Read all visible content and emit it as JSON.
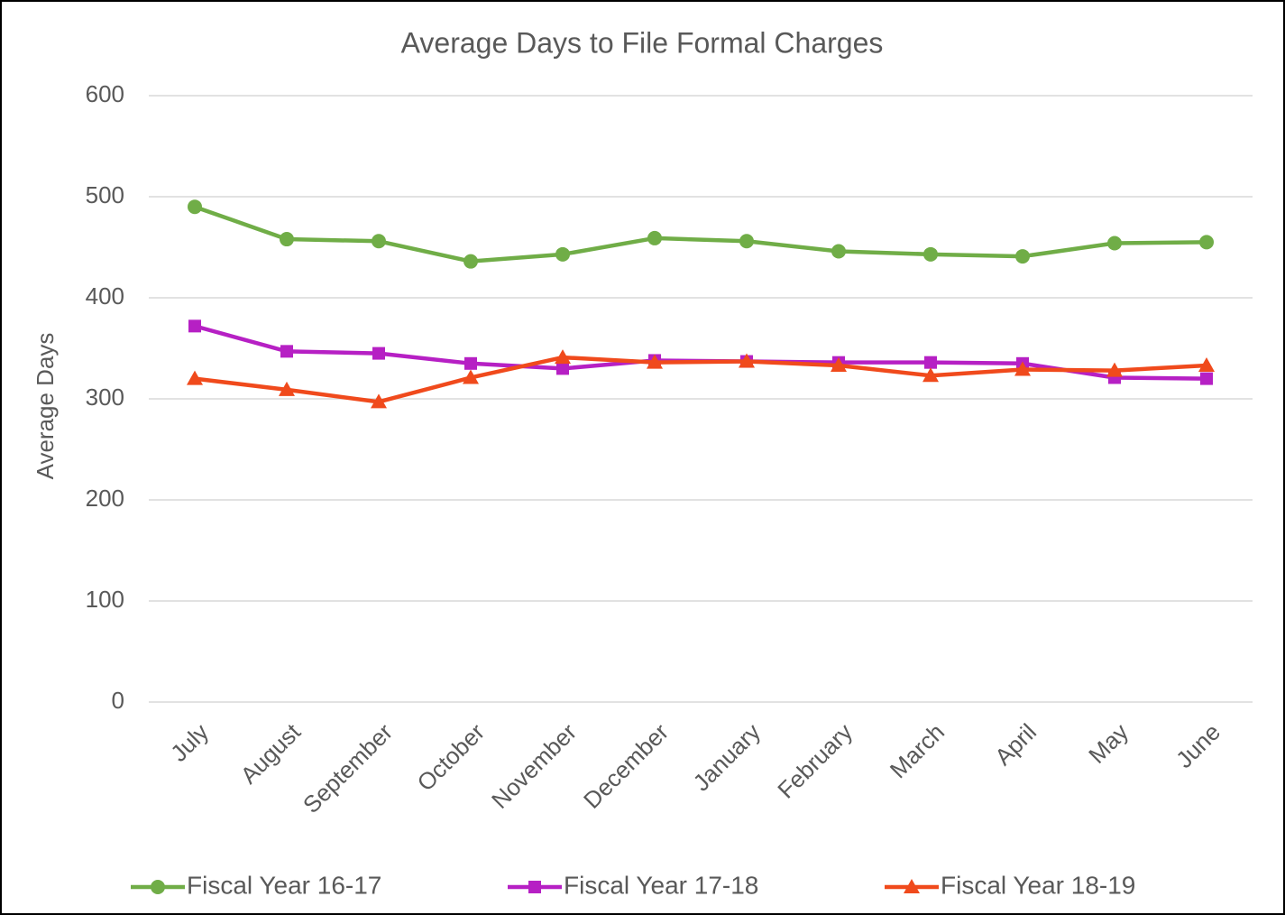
{
  "chart_data": {
    "type": "line",
    "title": "Average Days to File Formal Charges",
    "y_label": "Average Days",
    "categories": [
      "July",
      "August",
      "September",
      "October",
      "November",
      "December",
      "January",
      "February",
      "March",
      "April",
      "May",
      "June"
    ],
    "series": [
      {
        "name": "Fiscal Year 16-17",
        "color": "#70ad47",
        "marker": "circle",
        "values": [
          490,
          458,
          456,
          436,
          443,
          459,
          456,
          446,
          443,
          441,
          454,
          455
        ]
      },
      {
        "name": "Fiscal Year 17-18",
        "color": "#b620c4",
        "marker": "square",
        "values": [
          372,
          347,
          345,
          335,
          330,
          338,
          337,
          336,
          336,
          335,
          321,
          320
        ]
      },
      {
        "name": "Fiscal Year 18-19",
        "color": "#f04a1c",
        "marker": "triangle",
        "values": [
          320,
          309,
          297,
          321,
          341,
          336,
          337,
          333,
          323,
          329,
          328,
          333
        ]
      }
    ],
    "ylim": [
      0,
      600
    ],
    "yticks": [
      0,
      100,
      200,
      300,
      400,
      500,
      600
    ],
    "grid": true,
    "legend": "bottom"
  }
}
